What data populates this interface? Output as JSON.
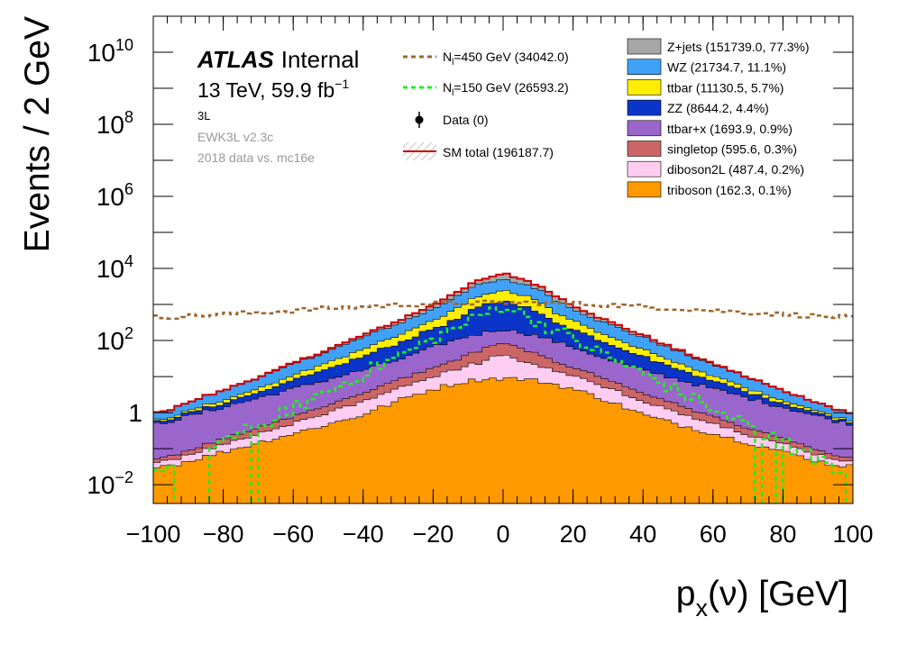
{
  "chart_data": {
    "type": "area",
    "stacked": true,
    "yscale": "log",
    "xlim": [
      -100,
      100
    ],
    "ylim": [
      0.003,
      100000000000.0
    ],
    "bin_width": 2,
    "xlabel_main": "p",
    "xlabel_sub": "x",
    "xlabel_rest": "(ν) [GeV]",
    "ylabel": "Events / 2 GeV",
    "xticks": [
      -100,
      -80,
      -60,
      -40,
      -20,
      0,
      20,
      40,
      60,
      80,
      100
    ],
    "xtick_labels": [
      "−100",
      "−80",
      "−60",
      "−40",
      "−20",
      "0",
      "20",
      "40",
      "60",
      "80",
      "100"
    ],
    "yticks": [
      {
        "value": 10000000000.0,
        "base": "10",
        "exp": "10"
      },
      {
        "value": 100000000.0,
        "base": "10",
        "exp": "8"
      },
      {
        "value": 1000000.0,
        "base": "10",
        "exp": "6"
      },
      {
        "value": 10000.0,
        "base": "10",
        "exp": "4"
      },
      {
        "value": 100.0,
        "base": "10",
        "exp": "2"
      },
      {
        "value": 1,
        "base": "1",
        "exp": ""
      },
      {
        "value": 0.01,
        "base": "10",
        "exp": "−2"
      }
    ],
    "atlas_bold": "ATLAS",
    "atlas_status": "Internal",
    "lumi_text": "13 TeV, 59.9 fb",
    "lumi_exp": "−1",
    "region": "3L",
    "version": "EWK3L v2.3c",
    "dataset": "2018 data vs. mc16e",
    "series": [
      {
        "name": "Z+jets (151739.0, 77.3%)",
        "color": "#a6a6a6",
        "peak_log": 3.4,
        "left_log": -2.0,
        "right_log": -2.0,
        "sigma": 4.0
      },
      {
        "name": "WZ (21734.7, 11.1%)",
        "color": "#3fa2f8",
        "peak_log": 3.35,
        "left_log": -0.5,
        "right_log": -0.5,
        "sigma": 30
      },
      {
        "name": "ttbar (11130.5, 5.7%)",
        "color": "#ffee00",
        "peak_log": 3.05,
        "left_log": -1.3,
        "right_log": -1.3,
        "sigma": 27
      },
      {
        "name": "ZZ (8644.2, 4.4%)",
        "color": "#0a35c8",
        "peak_log": 3.0,
        "left_log": -1.2,
        "right_log": -1.2,
        "sigma": 24
      },
      {
        "name": "ttbar+x (1693.9, 0.9%)",
        "color": "#9a66cc",
        "peak_log": 2.05,
        "left_log": -0.4,
        "right_log": -0.4,
        "sigma": 35
      },
      {
        "name": "singletop (595.6, 0.3%)",
        "color": "#cc6666",
        "peak_log": 1.6,
        "left_log": -2.0,
        "right_log": -2.0,
        "sigma": 24
      },
      {
        "name": "diboson2L (487.4, 0.2%)",
        "color": "#ffccf2",
        "peak_log": 1.45,
        "left_log": -2.0,
        "right_log": -2.0,
        "sigma": 16
      },
      {
        "name": "triboson (162.3, 0.1%)",
        "color": "#ff9900",
        "peak_log": 0.95,
        "left_log": -1.6,
        "right_log": -1.6,
        "sigma": 40
      }
    ],
    "overlays": [
      {
        "name": "N",
        "sub": "l",
        "rest": "=450 GeV (34042.0)",
        "color": "#a0652a",
        "style": "dashed"
      },
      {
        "name": "N",
        "sub": "l",
        "rest": "=150 GeV (26593.2)",
        "color": "#22ee22",
        "style": "dashed"
      }
    ],
    "data_label": "Data (0)",
    "sm_total_label": "SM total (196187.7)",
    "sm_total_color": "#cc0000"
  }
}
